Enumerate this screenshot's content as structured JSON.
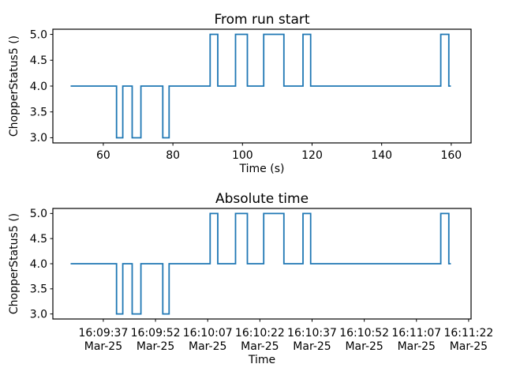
{
  "figure": {
    "background": "#ffffff",
    "text_color": "#000000",
    "spine_color": "#000000",
    "accent_line_color": "#1f77b4"
  },
  "chart_data": [
    {
      "type": "line",
      "step": "post",
      "title": "From run start",
      "xlabel": "Time (s)",
      "ylabel": "ChopperStatus5 ()",
      "legend": null,
      "grid": false,
      "line_color": "#1f77b4",
      "xlim": [
        45.5,
        165.7
      ],
      "ylim": [
        2.9,
        5.1
      ],
      "x_ticks": {
        "values": [
          60,
          80,
          100,
          120,
          140,
          160
        ],
        "labels": [
          "60",
          "80",
          "100",
          "120",
          "140",
          "160"
        ]
      },
      "y_ticks": {
        "values": [
          3.0,
          3.5,
          4.0,
          4.5,
          5.0
        ],
        "labels": [
          "3.0",
          "3.5",
          "4.0",
          "4.5",
          "5.0"
        ]
      },
      "x": [
        50.6,
        63.8,
        65.6,
        68.3,
        70.8,
        77.1,
        78.9,
        90.7,
        92.9,
        98.0,
        101.4,
        106.1,
        111.9,
        117.4,
        119.6,
        157.0,
        159.3,
        159.9
      ],
      "y": [
        4,
        3,
        4,
        3,
        4,
        3,
        4,
        5,
        4,
        5,
        4,
        5,
        4,
        5,
        4,
        5,
        4,
        4
      ]
    },
    {
      "type": "line",
      "step": "post",
      "title": "Absolute time",
      "xlabel": "Time",
      "ylabel": "ChopperStatus5 ()",
      "legend": null,
      "grid": false,
      "line_color": "#1f77b4",
      "xlim": [
        45.5,
        165.7
      ],
      "ylim": [
        2.9,
        5.1
      ],
      "x_ticks": {
        "values": [
          60,
          75,
          90,
          105,
          120,
          135,
          150,
          165
        ],
        "labels": [
          [
            "16:09:37",
            "Mar-25"
          ],
          [
            "16:09:52",
            "Mar-25"
          ],
          [
            "16:10:07",
            "Mar-25"
          ],
          [
            "16:10:22",
            "Mar-25"
          ],
          [
            "16:10:37",
            "Mar-25"
          ],
          [
            "16:10:52",
            "Mar-25"
          ],
          [
            "16:11:07",
            "Mar-25"
          ],
          [
            "16:11:22",
            "Mar-25"
          ]
        ]
      },
      "y_ticks": {
        "values": [
          3.0,
          3.5,
          4.0,
          4.5,
          5.0
        ],
        "labels": [
          "3.0",
          "3.5",
          "4.0",
          "4.5",
          "5.0"
        ]
      },
      "x": [
        50.6,
        63.8,
        65.6,
        68.3,
        70.8,
        77.1,
        78.9,
        90.7,
        92.9,
        98.0,
        101.4,
        106.1,
        111.9,
        117.4,
        119.6,
        157.0,
        159.3,
        159.9
      ],
      "y": [
        4,
        3,
        4,
        3,
        4,
        3,
        4,
        5,
        4,
        5,
        4,
        5,
        4,
        5,
        4,
        5,
        4,
        4
      ]
    }
  ]
}
